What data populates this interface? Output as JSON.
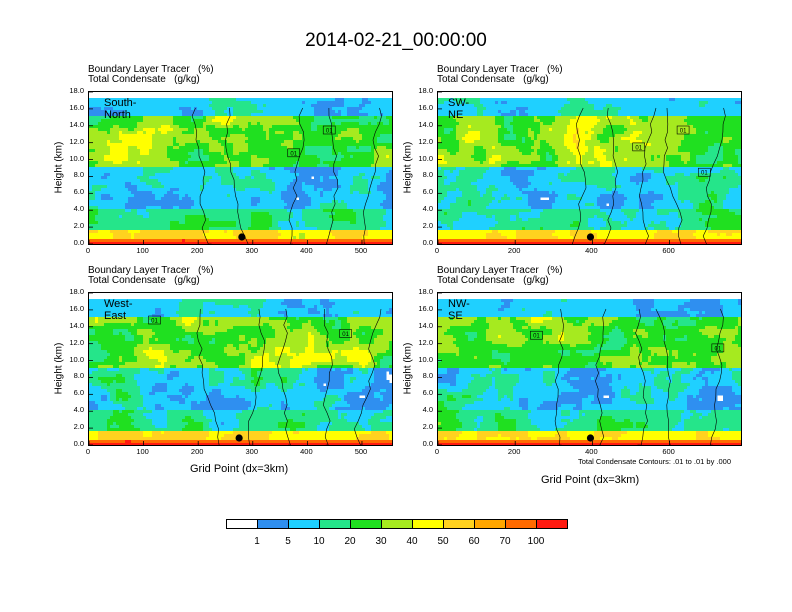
{
  "title": "2014-02-21_00:00:00",
  "footnote": "Total Condensate Contours: .01 to .01 by .000",
  "colorbar": {
    "colors": [
      "#ffffff",
      "#2f8ff0",
      "#1fd0ff",
      "#25e58a",
      "#20e020",
      "#a6ea1f",
      "#ffff00",
      "#ffd21f",
      "#ffa600",
      "#ff6a00",
      "#ff1a10"
    ],
    "labels": [
      "1",
      "5",
      "10",
      "20",
      "30",
      "40",
      "50",
      "60",
      "70",
      "100"
    ]
  },
  "chart_data": [
    {
      "type": "heatmap",
      "cross_section": "South-North",
      "title_line1": "Boundary Layer Tracer   (%)",
      "title_line2": "Total Condensate   (g/kg)",
      "ylabel": "Height (km)",
      "xlabel": "",
      "yticks": [
        "0.0",
        "2.0",
        "4.0",
        "6.0",
        "8.0",
        "10.0",
        "12.0",
        "14.0",
        "16.0",
        "18.0"
      ],
      "ylim": [
        0,
        18
      ],
      "xticks": [
        0,
        100,
        200,
        300,
        400,
        500
      ],
      "xlim": [
        0,
        555
      ],
      "marker_x": 280,
      "contour_labels": [
        {
          "text": "01",
          "x": 440,
          "y": 13.5
        },
        {
          "text": "01",
          "x": 375,
          "y": 10.8
        }
      ]
    },
    {
      "type": "heatmap",
      "cross_section": "SW-NE",
      "title_line1": "Boundary Layer Tracer   (%)",
      "title_line2": "Total Condensate   (g/kg)",
      "ylabel": "Height (km)",
      "xlabel": "",
      "yticks": [
        "0.0",
        "2.0",
        "4.0",
        "6.0",
        "8.0",
        "10.0",
        "12.0",
        "14.0",
        "16.0",
        "18.0"
      ],
      "ylim": [
        0,
        18
      ],
      "xticks": [
        0,
        200,
        400,
        600
      ],
      "xlim": [
        0,
        785
      ],
      "marker_x": 395,
      "contour_labels": [
        {
          "text": "01",
          "x": 635,
          "y": 13.5
        },
        {
          "text": "01",
          "x": 520,
          "y": 11.5
        },
        {
          "text": "01",
          "x": 690,
          "y": 8.5
        }
      ]
    },
    {
      "type": "heatmap",
      "cross_section": "West-East",
      "title_line1": "Boundary Layer Tracer   (%)",
      "title_line2": "Total Condensate   (g/kg)",
      "ylabel": "Height (km)",
      "xlabel": "Grid Point (dx=3km)",
      "yticks": [
        "0.0",
        "2.0",
        "4.0",
        "6.0",
        "8.0",
        "10.0",
        "12.0",
        "14.0",
        "16.0",
        "18.0"
      ],
      "ylim": [
        0,
        18
      ],
      "xticks": [
        0,
        100,
        200,
        300,
        400,
        500
      ],
      "xlim": [
        0,
        555
      ],
      "marker_x": 275,
      "contour_labels": [
        {
          "text": "01",
          "x": 120,
          "y": 14.8
        },
        {
          "text": "01",
          "x": 470,
          "y": 13.2
        }
      ]
    },
    {
      "type": "heatmap",
      "cross_section": "NW-SE",
      "title_line1": "Boundary Layer Tracer   (%)",
      "title_line2": "Total Condensate   (g/kg)",
      "ylabel": "Height (km)",
      "xlabel": "Grid Point (dx=3km)",
      "yticks": [
        "0.0",
        "2.0",
        "4.0",
        "6.0",
        "8.0",
        "10.0",
        "12.0",
        "14.0",
        "16.0",
        "18.0"
      ],
      "ylim": [
        0,
        18
      ],
      "xticks": [
        0,
        200,
        400,
        600
      ],
      "xlim": [
        0,
        785
      ],
      "marker_x": 395,
      "contour_labels": [
        {
          "text": "01",
          "x": 255,
          "y": 13.0
        },
        {
          "text": "01",
          "x": 725,
          "y": 11.5
        }
      ]
    }
  ]
}
